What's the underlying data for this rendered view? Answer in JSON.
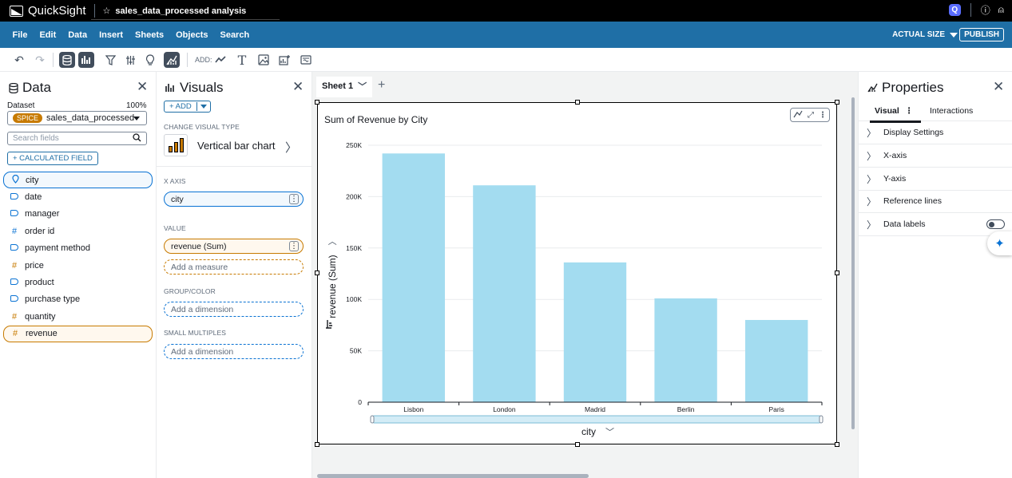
{
  "app": {
    "name": "QuickSight",
    "analysis_title": "sales_data_processed analysis",
    "q_badge": "Q"
  },
  "menu": [
    "File",
    "Edit",
    "Data",
    "Insert",
    "Sheets",
    "Objects",
    "Search"
  ],
  "menu_right": {
    "actual_size": "ACTUAL SIZE",
    "publish": "PUBLISH"
  },
  "toolbar": {
    "add_label": "ADD:",
    "text_icon": "T"
  },
  "data_panel": {
    "title": "Data",
    "dataset_label": "Dataset",
    "dataset_pct": "100%",
    "spice": "SPICE",
    "dataset_name": "sales_data_processed",
    "search_placeholder": "Search fields",
    "calc_field": "+ CALCULATED FIELD",
    "fields": [
      {
        "name": "city",
        "type": "geo",
        "state": "selected"
      },
      {
        "name": "date",
        "type": "dimension",
        "state": ""
      },
      {
        "name": "manager",
        "type": "dimension",
        "state": ""
      },
      {
        "name": "order id",
        "type": "measure-dim",
        "state": ""
      },
      {
        "name": "payment method",
        "type": "dimension",
        "state": ""
      },
      {
        "name": "price",
        "type": "measure",
        "state": ""
      },
      {
        "name": "product",
        "type": "dimension",
        "state": ""
      },
      {
        "name": "purchase type",
        "type": "dimension",
        "state": ""
      },
      {
        "name": "quantity",
        "type": "measure",
        "state": ""
      },
      {
        "name": "revenue",
        "type": "measure",
        "state": "selected"
      }
    ]
  },
  "visuals_panel": {
    "title": "Visuals",
    "add": "+ ADD",
    "change_type_label": "CHANGE VISUAL TYPE",
    "visual_type": "Vertical bar chart",
    "x_axis_label": "X AXIS",
    "x_axis_field": "city",
    "value_label": "VALUE",
    "value_field": "revenue (Sum)",
    "add_measure": "Add a measure",
    "group_label": "GROUP/COLOR",
    "add_dimension_group": "Add a dimension",
    "small_multiples_label": "SMALL MULTIPLES",
    "add_dimension_sm": "Add a dimension"
  },
  "sheet": {
    "tab": "Sheet 1",
    "add": "+"
  },
  "chart_data": {
    "type": "bar",
    "title": "Sum of Revenue by City",
    "xlabel": "city",
    "ylabel": "revenue (Sum)",
    "categories": [
      "Lisbon",
      "London",
      "Madrid",
      "Berlin",
      "Paris"
    ],
    "values": [
      242000,
      211000,
      136000,
      101000,
      80000
    ],
    "ylim": [
      0,
      250000
    ],
    "yticks": [
      0,
      50000,
      100000,
      150000,
      200000,
      250000
    ],
    "ytick_labels": [
      "0",
      "50K",
      "100K",
      "150K",
      "200K",
      "250K"
    ],
    "bar_color": "#a3dcf0",
    "grid": true
  },
  "properties_panel": {
    "title": "Properties",
    "tab_visual": "Visual",
    "tab_interactions": "Interactions",
    "rows": [
      "Display Settings",
      "X-axis",
      "Y-axis",
      "Reference lines",
      "Data labels"
    ]
  },
  "colors": {
    "topbar": "#000000",
    "menubar": "#1f6fa6",
    "accent_blue": "#0972d3",
    "accent_orange": "#c77a00"
  }
}
